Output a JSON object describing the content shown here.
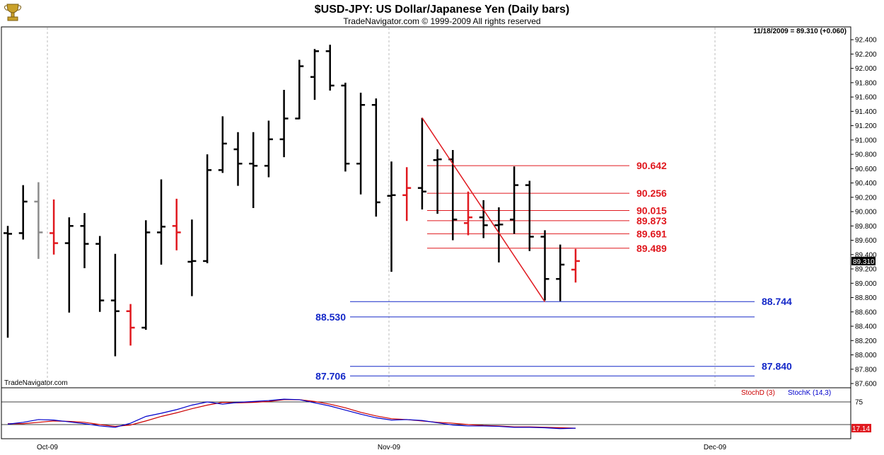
{
  "header": {
    "title": "$USD-JPY:  US Dollar/Japanese Yen  (Daily bars)",
    "copyright": "TradeNavigator.com © 1999-2009 All rights reserved",
    "last_quote": "11/18/2009 = 89.310 (+0.060)",
    "watermark": "TradeNavigator.com",
    "logo_icon": "trophy-icon"
  },
  "colors": {
    "up_bar": "#000000",
    "down_bar": "#e0191f",
    "neutral_bar": "#8c8c8c",
    "red_level": "#e0191f",
    "blue_level": "#1428c8",
    "stoch_d": "#cc0000",
    "stoch_k": "#0000cc"
  },
  "chart_data": [
    {
      "type": "ohlc",
      "ylim": [
        87.6,
        92.5
      ],
      "y_ticks": [
        "92.400",
        "92.200",
        "92.000",
        "91.800",
        "91.600",
        "91.400",
        "91.200",
        "91.000",
        "90.800",
        "90.600",
        "90.400",
        "90.200",
        "90.000",
        "89.800",
        "89.600",
        "89.400",
        "89.200",
        "89.000",
        "88.800",
        "88.600",
        "88.400",
        "88.200",
        "88.000",
        "87.800",
        "87.600"
      ],
      "x_labels": [
        "Oct-09",
        "Nov-09",
        "Dec-09"
      ],
      "last_price_label": "89.310",
      "bars": [
        {
          "o": 89.7,
          "h": 89.8,
          "l": 88.24,
          "c": 89.69,
          "color": "up"
        },
        {
          "o": 89.7,
          "h": 90.37,
          "l": 89.61,
          "c": 90.14,
          "color": "up"
        },
        {
          "o": 90.14,
          "h": 90.41,
          "l": 89.34,
          "c": 89.71,
          "color": "neutral"
        },
        {
          "o": 89.7,
          "h": 90.17,
          "l": 89.4,
          "c": 89.56,
          "color": "down"
        },
        {
          "o": 89.56,
          "h": 89.92,
          "l": 88.59,
          "c": 89.8,
          "color": "up"
        },
        {
          "o": 89.8,
          "h": 89.98,
          "l": 89.21,
          "c": 89.55,
          "color": "up"
        },
        {
          "o": 89.55,
          "h": 89.66,
          "l": 88.6,
          "c": 88.76,
          "color": "up"
        },
        {
          "o": 88.76,
          "h": 89.41,
          "l": 87.98,
          "c": 88.61,
          "color": "up"
        },
        {
          "o": 88.61,
          "h": 88.71,
          "l": 88.13,
          "c": 88.38,
          "color": "down"
        },
        {
          "o": 88.38,
          "h": 89.88,
          "l": 88.35,
          "c": 89.71,
          "color": "up"
        },
        {
          "o": 89.71,
          "h": 90.45,
          "l": 89.26,
          "c": 89.79,
          "color": "up"
        },
        {
          "o": 89.8,
          "h": 90.18,
          "l": 89.46,
          "c": 89.71,
          "color": "down"
        },
        {
          "o": 89.3,
          "h": 89.89,
          "l": 88.82,
          "c": 89.31,
          "color": "up"
        },
        {
          "o": 89.31,
          "h": 90.8,
          "l": 89.28,
          "c": 90.58,
          "color": "up"
        },
        {
          "o": 90.58,
          "h": 91.33,
          "l": 90.54,
          "c": 90.95,
          "color": "up"
        },
        {
          "o": 90.87,
          "h": 91.11,
          "l": 90.36,
          "c": 90.67,
          "color": "up"
        },
        {
          "o": 90.67,
          "h": 91.11,
          "l": 90.05,
          "c": 90.64,
          "color": "up"
        },
        {
          "o": 90.64,
          "h": 91.27,
          "l": 90.48,
          "c": 91.01,
          "color": "up"
        },
        {
          "o": 91.01,
          "h": 91.7,
          "l": 90.76,
          "c": 91.3,
          "color": "up"
        },
        {
          "o": 91.3,
          "h": 92.12,
          "l": 91.29,
          "c": 92.03,
          "color": "up"
        },
        {
          "o": 91.88,
          "h": 92.27,
          "l": 91.56,
          "c": 92.24,
          "color": "up"
        },
        {
          "o": 92.24,
          "h": 92.33,
          "l": 91.69,
          "c": 91.76,
          "color": "up"
        },
        {
          "o": 91.76,
          "h": 91.8,
          "l": 90.56,
          "c": 90.67,
          "color": "up"
        },
        {
          "o": 90.67,
          "h": 91.66,
          "l": 90.24,
          "c": 91.49,
          "color": "up"
        },
        {
          "o": 91.49,
          "h": 91.58,
          "l": 89.93,
          "c": 90.13,
          "color": "up"
        },
        {
          "o": 90.22,
          "h": 90.7,
          "l": 89.16,
          "c": 90.23,
          "color": "up"
        },
        {
          "o": 90.23,
          "h": 90.62,
          "l": 89.87,
          "c": 90.33,
          "color": "down"
        },
        {
          "o": 90.33,
          "h": 91.31,
          "l": 90.03,
          "c": 90.28,
          "color": "up"
        },
        {
          "o": 90.72,
          "h": 90.87,
          "l": 89.97,
          "c": 90.73,
          "color": "up"
        },
        {
          "o": 90.73,
          "h": 90.86,
          "l": 89.6,
          "c": 89.89,
          "color": "up"
        },
        {
          "o": 89.84,
          "h": 90.28,
          "l": 89.67,
          "c": 89.92,
          "color": "down"
        },
        {
          "o": 89.92,
          "h": 90.16,
          "l": 89.63,
          "c": 89.81,
          "color": "up"
        },
        {
          "o": 89.81,
          "h": 90.06,
          "l": 89.29,
          "c": 89.82,
          "color": "up"
        },
        {
          "o": 89.89,
          "h": 90.63,
          "l": 89.69,
          "c": 90.37,
          "color": "up"
        },
        {
          "o": 90.37,
          "h": 90.43,
          "l": 89.45,
          "c": 89.65,
          "color": "up"
        },
        {
          "o": 89.65,
          "h": 89.74,
          "l": 88.76,
          "c": 89.06,
          "color": "up"
        },
        {
          "o": 89.06,
          "h": 89.54,
          "l": 88.75,
          "c": 89.26,
          "color": "up"
        },
        {
          "o": 89.19,
          "h": 89.48,
          "l": 89.01,
          "c": 89.31,
          "color": "down"
        }
      ],
      "fib_levels_red": [
        "90.642",
        "90.256",
        "90.015",
        "89.873",
        "89.691",
        "89.489"
      ],
      "fib_levels_blue": [
        "88.744",
        "88.530",
        "87.840",
        "87.706"
      ],
      "trendline": {
        "from": {
          "bar": 27,
          "y": 91.31
        },
        "to": {
          "bar": 35,
          "y": 88.74
        }
      }
    },
    {
      "type": "line",
      "name": "stochastic",
      "ylim": [
        0,
        100
      ],
      "y_ticks": [
        "75"
      ],
      "last_value_label": "17.14",
      "series": [
        {
          "name": "StochD (3)",
          "values": [
            27,
            27,
            30,
            33,
            32,
            30,
            25,
            21,
            24,
            33,
            43,
            51,
            60,
            68,
            74,
            73,
            74,
            76,
            80,
            80,
            76,
            70,
            62,
            52,
            44,
            38,
            36,
            33,
            30,
            28,
            25,
            23,
            22,
            20,
            20,
            19,
            18,
            17
          ]
        },
        {
          "name": "StochK (14,3)",
          "values": [
            26,
            30,
            36,
            35,
            31,
            27,
            22,
            19,
            28,
            43,
            50,
            58,
            68,
            75,
            70,
            74,
            76,
            78,
            81,
            80,
            73,
            66,
            57,
            48,
            40,
            35,
            36,
            34,
            29,
            24,
            22,
            22,
            21,
            19,
            19,
            18,
            16,
            17
          ]
        }
      ]
    }
  ]
}
